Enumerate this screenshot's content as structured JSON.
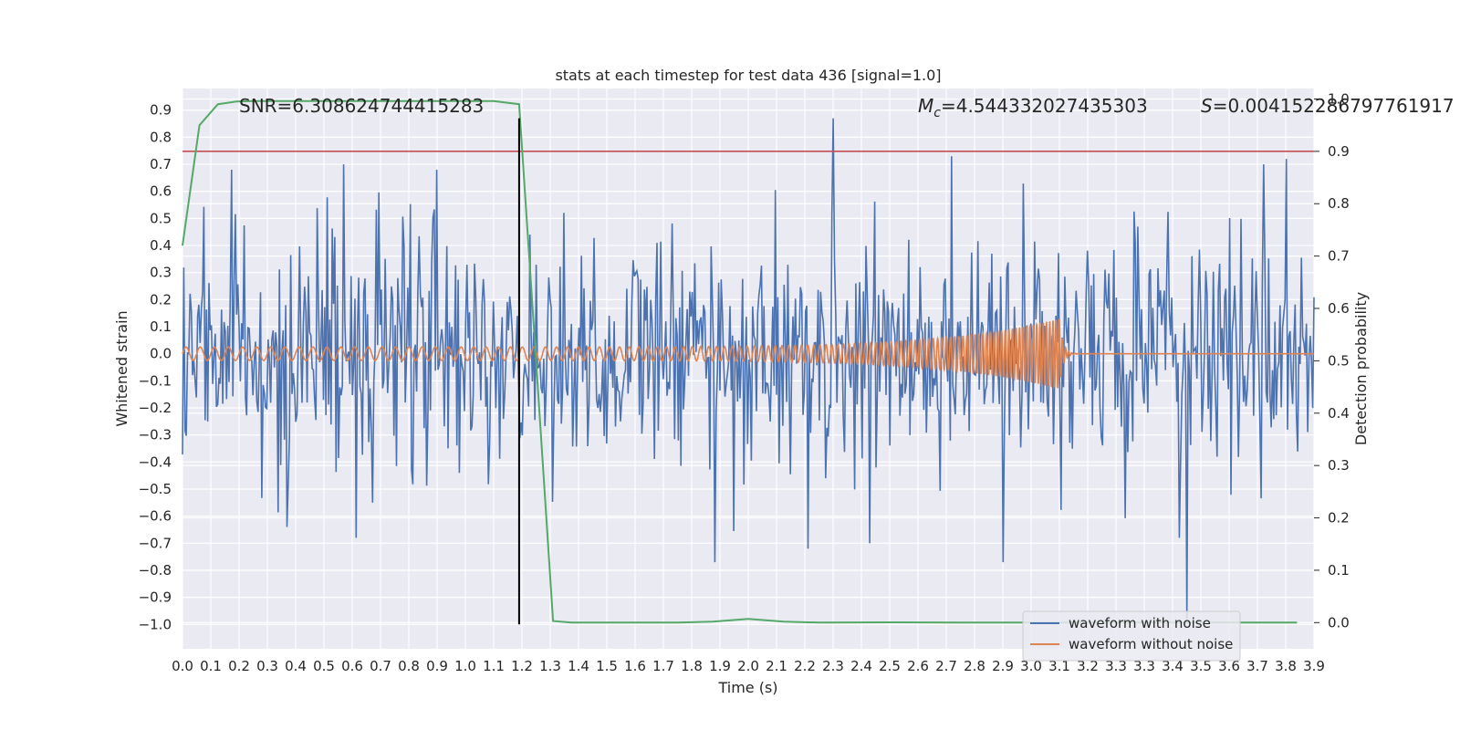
{
  "chart_data": {
    "type": "line",
    "title": "stats at each timestep for test data 436 [signal=1.0]",
    "xlabel": "Time (s)",
    "ylabel_left": "Whitened strain",
    "ylabel_right": "Detection probability",
    "xlim": [
      0.0,
      4.0
    ],
    "ylim_left": [
      -1.09,
      0.98
    ],
    "ylim_right": [
      -0.05,
      1.02
    ],
    "grid": true,
    "x_ticks": [
      "0.0",
      "0.1",
      "0.2",
      "0.3",
      "0.4",
      "0.5",
      "0.6",
      "0.7",
      "0.8",
      "0.9",
      "1.0",
      "1.1",
      "1.2",
      "1.3",
      "1.4",
      "1.5",
      "1.6",
      "1.7",
      "1.8",
      "1.9",
      "2.0",
      "2.1",
      "2.2",
      "2.3",
      "2.4",
      "2.5",
      "2.6",
      "2.7",
      "2.8",
      "2.9",
      "3.0",
      "3.1",
      "3.2",
      "3.3",
      "3.3",
      "3.4",
      "3.5",
      "3.6",
      "3.7",
      "3.8",
      "3.9"
    ],
    "y_ticks_left": [
      "0.9",
      "0.8",
      "0.7",
      "0.6",
      "0.5",
      "0.4",
      "0.3",
      "0.2",
      "0.1",
      "0.0",
      "−0.1",
      "−0.2",
      "−0.3",
      "−0.4",
      "−0.5",
      "−0.6",
      "−0.7",
      "−0.8",
      "−0.9",
      "−1.0"
    ],
    "y_ticks_right": [
      "1.0",
      "0.9",
      "0.8",
      "0.7",
      "0.6",
      "0.5",
      "0.4",
      "0.3",
      "0.2",
      "0.1",
      "0.0"
    ],
    "annotations": {
      "snr": "SNR=6.308624744415283",
      "mc_symbol": "M",
      "mc_sub": "c",
      "mc_value": "=4.544332027435303",
      "s_symbol": "S",
      "s_value": "=0.004152286797761917"
    },
    "threshold": {
      "axis": "right",
      "value": 0.9,
      "color": "#c44e52"
    },
    "event_line": {
      "x": 1.19,
      "y_top_left": 0.87,
      "y_bottom_left": -1.0,
      "color": "#000000"
    },
    "legend": {
      "location": "lower-right",
      "entries": [
        {
          "label": "waveform with noise",
          "color": "#4c72b0"
        },
        {
          "label": "waveform without noise",
          "color": "#dd8452"
        }
      ]
    },
    "series": [
      {
        "name": "waveform with noise",
        "color": "#4c72b0",
        "axis": "left",
        "kind": "noise",
        "sample_count": 900,
        "std": 0.22,
        "spikes": [
          {
            "x": 2.3,
            "y": 0.87
          },
          {
            "x": 3.55,
            "y": -0.98
          },
          {
            "x": 3.9,
            "y": 0.72
          },
          {
            "x": 3.82,
            "y": 0.7
          },
          {
            "x": 2.72,
            "y": 0.73
          },
          {
            "x": 0.57,
            "y": 0.7
          },
          {
            "x": 1.88,
            "y": -0.77
          },
          {
            "x": 2.9,
            "y": -0.77
          },
          {
            "x": 2.21,
            "y": -0.72
          },
          {
            "x": 2.43,
            "y": -0.7
          },
          {
            "x": 0.37,
            "y": -0.64
          }
        ]
      },
      {
        "name": "waveform without noise",
        "color": "#dd8452",
        "axis": "left",
        "kind": "chirp",
        "start": 0.0,
        "merger": 3.1,
        "base_amplitude": 0.025,
        "peak_amplitude": 0.13,
        "base_frequency": 20,
        "end_frequency": 90
      },
      {
        "name": "detection probability",
        "color": "#55a868",
        "axis": "right",
        "x": [
          0.0,
          0.06,
          0.125,
          0.19,
          0.25,
          0.5,
          0.75,
          1.0,
          1.1,
          1.19,
          1.25,
          1.31,
          1.375,
          1.5,
          1.75,
          1.875,
          2.0,
          2.125,
          2.25,
          2.5,
          2.75,
          3.0,
          3.25,
          3.5,
          3.75,
          3.94
        ],
        "y": [
          0.72,
          0.95,
          0.99,
          0.995,
          0.996,
          0.996,
          0.996,
          0.996,
          0.996,
          0.99,
          0.5,
          0.003,
          0.0,
          0.0,
          0.0,
          0.002,
          0.007,
          0.002,
          0.0,
          0.0005,
          0.0,
          0.0,
          0.0,
          0.0,
          0.0,
          0.0
        ]
      }
    ]
  }
}
